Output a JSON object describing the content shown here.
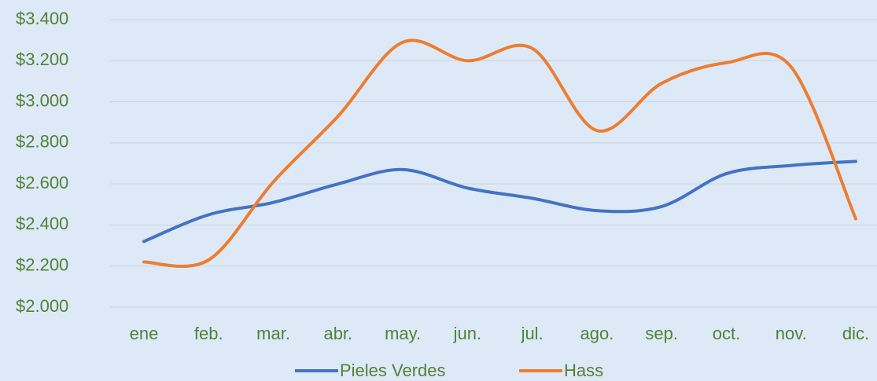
{
  "chart_data": {
    "type": "line",
    "categories": [
      "ene",
      "feb.",
      "mar.",
      "abr.",
      "may.",
      "jun.",
      "jul.",
      "ago.",
      "sep.",
      "oct.",
      "nov.",
      "dic."
    ],
    "series": [
      {
        "name": "Pieles Verdes",
        "color": "#4472c4",
        "values": [
          2320,
          2450,
          2510,
          2600,
          2670,
          2580,
          2530,
          2470,
          2490,
          2650,
          2690,
          2710
        ]
      },
      {
        "name": "Hass",
        "color": "#ed7d31",
        "values": [
          2220,
          2230,
          2610,
          2930,
          3290,
          3200,
          3260,
          2860,
          3090,
          3190,
          3170,
          2430
        ]
      }
    ],
    "ylim": [
      2000,
      3400
    ],
    "yticks": [
      {
        "value": 2000,
        "label": "$2.000"
      },
      {
        "value": 2200,
        "label": "$2.200"
      },
      {
        "value": 2400,
        "label": "$2.400"
      },
      {
        "value": 2600,
        "label": "$2.600"
      },
      {
        "value": 2800,
        "label": "$2.800"
      },
      {
        "value": 3000,
        "label": "$3.000"
      },
      {
        "value": 3200,
        "label": "$3.200"
      },
      {
        "value": 3400,
        "label": "$3.400"
      }
    ],
    "grid": true,
    "smooth": true,
    "legend": "bottom"
  }
}
